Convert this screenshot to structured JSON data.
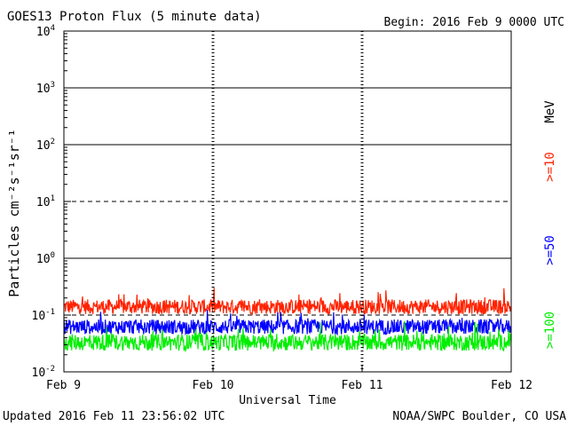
{
  "header": {
    "title": "GOES13 Proton Flux (5 minute data)",
    "begin": "Begin: 2016 Feb 9 0000 UTC"
  },
  "footer": {
    "updated": "Updated 2016 Feb 11 23:56:02 UTC",
    "credit": "NOAA/SWPC Boulder, CO USA"
  },
  "chart_data": {
    "type": "line",
    "title": "GOES13 Proton Flux (5 minute data)",
    "xlabel": "Universal Time",
    "ylabel": "Particles cm⁻²s⁻¹sr⁻¹",
    "x_ticks": [
      "Feb 9",
      "Feb 10",
      "Feb 11",
      "Feb 12"
    ],
    "y_ticks": [
      {
        "base": "10",
        "exp": "4"
      },
      {
        "base": "10",
        "exp": "3"
      },
      {
        "base": "10",
        "exp": "2"
      },
      {
        "base": "10",
        "exp": "1"
      },
      {
        "base": "10",
        "exp": "0"
      },
      {
        "base": "10",
        "exp": "-1"
      },
      {
        "base": "10",
        "exp": "-2"
      }
    ],
    "yscale": "log",
    "ylim": [
      0.01,
      10000
    ],
    "xlim": [
      "2016-02-09",
      "2016-02-12"
    ],
    "threshold_lines": [
      1000,
      100,
      10,
      1,
      0.1
    ],
    "dashed_thresholds": [
      10,
      0.1
    ],
    "energy_unit": "MeV",
    "series": [
      {
        "name": ">=10",
        "color": "#ff2200",
        "baseline": 0.14,
        "spread": 1.35
      },
      {
        "name": ">=50",
        "color": "#0000ff",
        "baseline": 0.062,
        "spread": 1.35
      },
      {
        "name": ">=100",
        "color": "#00ee00",
        "baseline": 0.033,
        "spread": 1.4
      }
    ]
  }
}
